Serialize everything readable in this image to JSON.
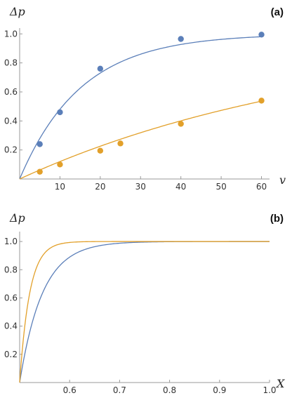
{
  "chart_data": [
    {
      "panel": "(a)",
      "type": "line",
      "xlabel": "v",
      "ylabel": "Δp",
      "xlim": [
        0,
        62
      ],
      "ylim": [
        0,
        1.04
      ],
      "x_ticks": [
        10,
        20,
        30,
        40,
        50,
        60
      ],
      "y_ticks": [
        0.2,
        0.4,
        0.6,
        0.8,
        1.0
      ],
      "x_tick_labels": [
        "10",
        "20",
        "30",
        "40",
        "50",
        "60"
      ],
      "y_tick_labels": [
        "0.2",
        "0.4",
        "0.6",
        "0.8",
        "1.0"
      ],
      "series": [
        {
          "color": "#5b7fb9",
          "curve": {
            "form": "1 - exp(-k*v)",
            "k": 0.0655,
            "x_range": [
              0,
              60
            ]
          },
          "points": {
            "x": [
              5,
              10,
              20,
              40,
              60
            ],
            "y": [
              0.24,
              0.46,
              0.76,
              0.965,
              0.995
            ]
          }
        },
        {
          "color": "#e2a02a",
          "curve": {
            "form": "1 - exp(-k*v)",
            "k": 0.0128,
            "x_range": [
              0,
              60
            ]
          },
          "points": {
            "x": [
              5,
              10,
              20,
              25,
              40,
              60
            ],
            "y": [
              0.05,
              0.1,
              0.195,
              0.245,
              0.38,
              0.54
            ]
          }
        }
      ]
    },
    {
      "panel": "(b)",
      "type": "line",
      "xlabel": "X",
      "ylabel": "Δp",
      "xlim": [
        0.5,
        1.0
      ],
      "ylim": [
        0,
        1.07
      ],
      "x_ticks": [
        0.6,
        0.7,
        0.8,
        0.9,
        1.0
      ],
      "y_ticks": [
        0.2,
        0.4,
        0.6,
        0.8,
        1.0
      ],
      "x_tick_labels": [
        "0.6",
        "0.7",
        "0.8",
        "0.9",
        "1.0"
      ],
      "y_tick_labels": [
        "0.2",
        "0.4",
        "0.6",
        "0.8",
        "1.0"
      ],
      "series": [
        {
          "color": "#5b7fb9",
          "curve": {
            "form": "1 - exp(-k*(X-0.5))",
            "k": 22,
            "x_range": [
              0.5,
              1.0
            ]
          }
        },
        {
          "color": "#e2a02a",
          "curve": {
            "form": "1 - exp(-k*(X-0.5))",
            "k": 50,
            "x_range": [
              0.5,
              1.0
            ]
          }
        }
      ]
    }
  ]
}
